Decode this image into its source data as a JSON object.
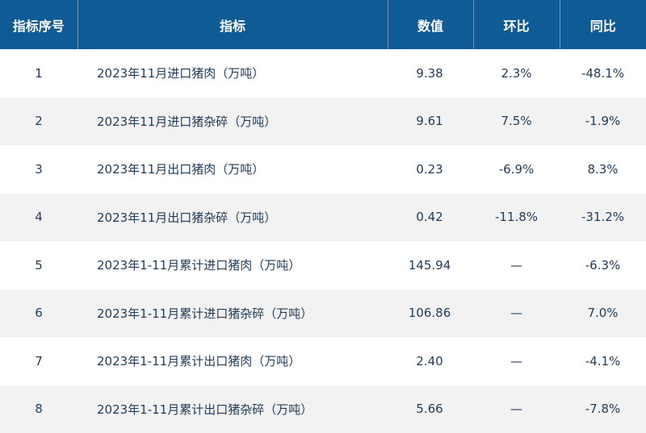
{
  "headers": {
    "index": "指标序号",
    "indicator": "指标",
    "value": "数值",
    "mom": "环比",
    "yoy": "同比"
  },
  "rows": [
    {
      "index": "1",
      "indicator": "2023年11月进口猪肉（万吨）",
      "value": "9.38",
      "mom": "2.3%",
      "yoy": "-48.1%"
    },
    {
      "index": "2",
      "indicator": "2023年11月进口猪杂碎（万吨）",
      "value": "9.61",
      "mom": "7.5%",
      "yoy": "-1.9%"
    },
    {
      "index": "3",
      "indicator": "2023年11月出口猪肉（万吨）",
      "value": "0.23",
      "mom": "-6.9%",
      "yoy": "8.3%"
    },
    {
      "index": "4",
      "indicator": "2023年11月出口猪杂碎（万吨）",
      "value": "0.42",
      "mom": "-11.8%",
      "yoy": "-31.2%"
    },
    {
      "index": "5",
      "indicator": "2023年1-11月累计进口猪肉（万吨）",
      "value": "145.94",
      "mom": "—",
      "yoy": "-6.3%"
    },
    {
      "index": "6",
      "indicator": "2023年1-11月累计进口猪杂碎（万吨）",
      "value": "106.86",
      "mom": "—",
      "yoy": "7.0%"
    },
    {
      "index": "7",
      "indicator": "2023年1-11月累计出口猪肉（万吨）",
      "value": "2.40",
      "mom": "—",
      "yoy": "-4.1%"
    },
    {
      "index": "8",
      "indicator": "2023年1-11月累计出口猪杂碎（万吨）",
      "value": "5.66",
      "mom": "—",
      "yoy": "-7.8%"
    }
  ],
  "colors": {
    "header_bg": "#0f5b95",
    "header_text": "#ffffff",
    "row_alt_bg": "#f2f2f2",
    "cell_text": "#1f3c5a"
  }
}
